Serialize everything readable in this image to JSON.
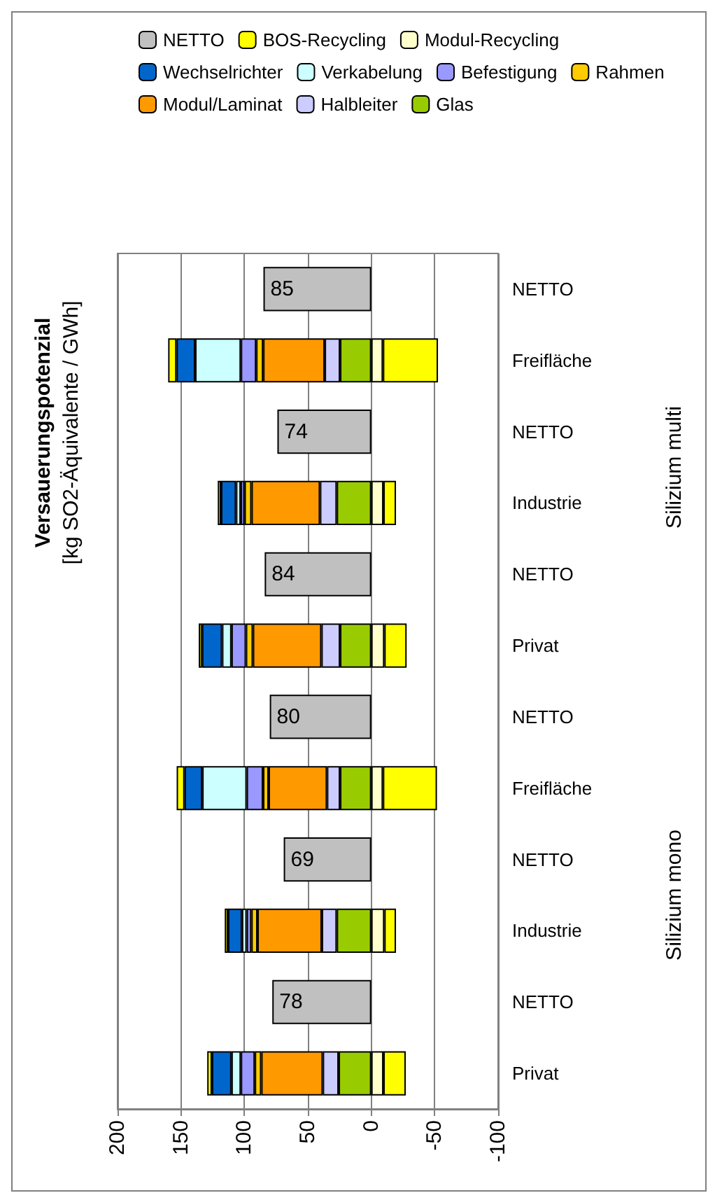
{
  "chart_data": {
    "type": "bar",
    "stacked": true,
    "orientation": "horizontal",
    "title": "Versauerungspotenzial",
    "subtitle": "[kg SO2-Äquivalente / GWh]",
    "categories": [
      "NETTO",
      "Freifläche",
      "NETTO",
      "Industrie",
      "NETTO",
      "Privat",
      "NETTO",
      "Freifläche",
      "NETTO",
      "Industrie",
      "NETTO",
      "Privat"
    ],
    "series": [
      {
        "name": "Glas",
        "color": "#99cc00",
        "values": [
          null,
          24.6,
          null,
          27.2,
          null,
          24.6,
          null,
          24.6,
          null,
          27.2,
          null,
          25.7
        ]
      },
      {
        "name": "Halbleiter",
        "color": "#ccccff",
        "values": [
          null,
          12.1,
          null,
          13.2,
          null,
          14.7,
          null,
          10.3,
          null,
          11.8,
          null,
          12.5
        ]
      },
      {
        "name": "Modul/Laminat",
        "color": "#ff9900",
        "values": [
          null,
          48.5,
          null,
          54,
          null,
          54,
          null,
          46,
          null,
          50.7,
          null,
          48.5
        ]
      },
      {
        "name": "Rahmen",
        "color": "#ffcc00",
        "values": [
          null,
          5.5,
          null,
          5.5,
          null,
          5.5,
          null,
          4.4,
          null,
          4.8,
          null,
          5.1
        ]
      },
      {
        "name": "Befestigung",
        "color": "#9999ff",
        "values": [
          null,
          12.1,
          null,
          3,
          null,
          11.4,
          null,
          12.9,
          null,
          3.7,
          null,
          11
        ]
      },
      {
        "name": "Verkabelung",
        "color": "#ccffff",
        "values": [
          null,
          36,
          null,
          3.7,
          null,
          7.4,
          null,
          35,
          null,
          3.7,
          null,
          7.4
        ]
      },
      {
        "name": "Wechselrichter",
        "color": "#0066cc",
        "values": [
          null,
          14.7,
          null,
          11.8,
          null,
          15.8,
          null,
          14,
          null,
          11,
          null,
          15.4
        ]
      },
      {
        "name": "Modul-Recycling",
        "color": "#ffffcc",
        "values": [
          null,
          -9.2,
          null,
          -9.6,
          null,
          -10.3,
          null,
          -9.2,
          null,
          -10.3,
          null,
          -9.6
        ]
      },
      {
        "name": "BOS-Recycling",
        "color": "#ffff00",
        "values": [
          null,
          -43.4,
          null,
          -9.9,
          null,
          -17.6,
          null,
          -42.6,
          null,
          -9.2,
          null,
          -17.6
        ]
      },
      {
        "color": "#ffff00",
        "values": [
          null,
          6.6,
          null,
          2.6,
          null,
          2.6,
          null,
          6.2,
          null,
          2.6,
          null,
          3.7
        ]
      },
      {
        "name": "NETTO",
        "color": "#c0c0c0",
        "values": [
          85,
          null,
          74,
          null,
          84,
          null,
          80,
          null,
          69,
          null,
          78,
          null
        ],
        "value_labels": [
          "85",
          null,
          "74",
          null,
          "84",
          null,
          "80",
          null,
          "69",
          null,
          "78",
          null
        ]
      }
    ],
    "xlim": [
      200,
      -100
    ],
    "xticks": [
      200,
      150,
      100,
      50,
      0,
      -50,
      -100
    ],
    "grid": "x",
    "legend": "top",
    "annotations": [
      "Silizium multi",
      "Silizium mono"
    ]
  }
}
